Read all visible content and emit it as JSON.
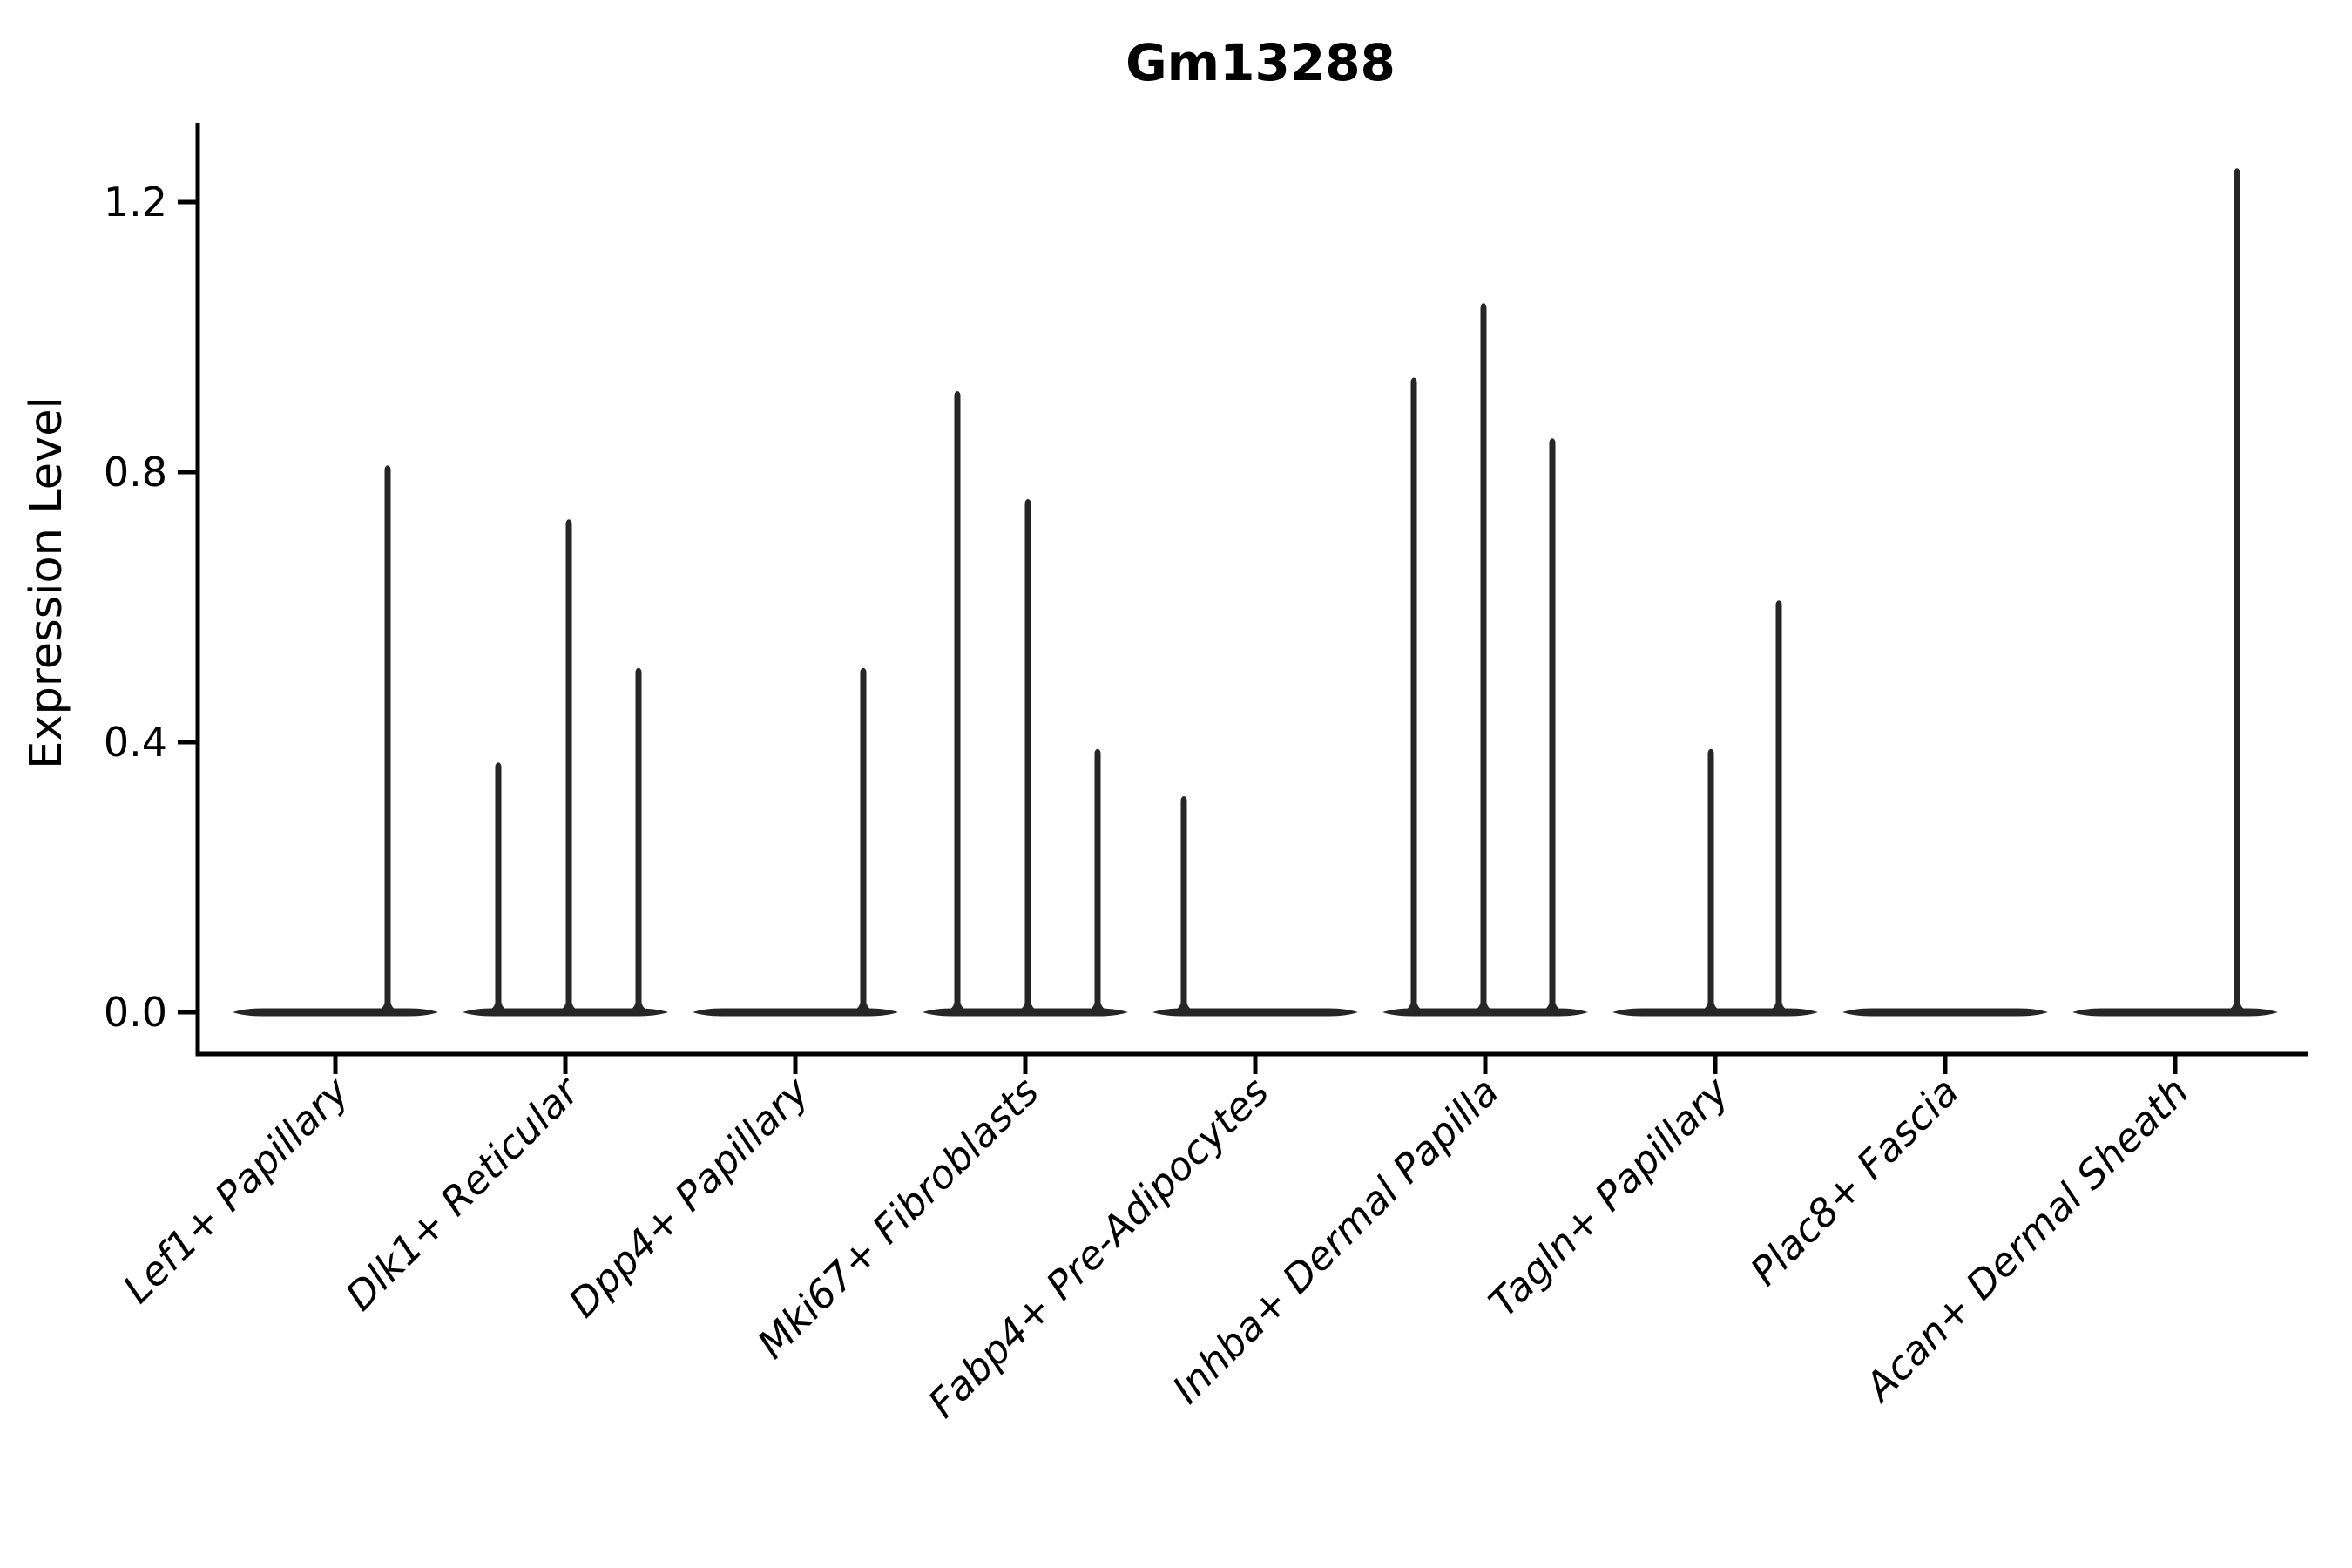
{
  "chart_data": {
    "type": "violin",
    "title": "Gm13288",
    "ylabel": "Expression Level",
    "xlabel": "",
    "categories": [
      "Lef1+ Papillary",
      "Dlk1+ Reticular",
      "Dpp4+ Papillary",
      "Mki67+ Fibroblasts",
      "Fabp4+ Pre-Adipocytes",
      "Inhba+ Dermal Papilla",
      "Tagln+ Papillary",
      "Plac8+ Fascia",
      "Acan+ Dermal Sheath"
    ],
    "y_tick_labels": [
      "0.0",
      "0.4",
      "0.8",
      "1.2"
    ],
    "y_tick_values": [
      0.0,
      0.4,
      0.8,
      1.2
    ],
    "ylim": [
      0,
      1.32
    ],
    "grid": false,
    "legend": false,
    "x_tick_rotation": 45,
    "violin_color": "#262626",
    "axis_color": "#000000",
    "series": [
      {
        "name": "Lef1+ Papillary",
        "baseline_value": 0.0,
        "spikes": [
          {
            "dx": 60,
            "value": 0.81
          }
        ]
      },
      {
        "name": "Dlk1+ Reticular",
        "baseline_value": 0.0,
        "spikes": [
          {
            "dx": -77,
            "value": 0.37
          },
          {
            "dx": 4,
            "value": 0.73
          },
          {
            "dx": 84,
            "value": 0.51
          }
        ]
      },
      {
        "name": "Dpp4+ Papillary",
        "baseline_value": 0.0,
        "spikes": [
          {
            "dx": 78,
            "value": 0.51
          }
        ]
      },
      {
        "name": "Mki67+ Fibroblasts",
        "baseline_value": 0.0,
        "spikes": [
          {
            "dx": -78,
            "value": 0.92
          },
          {
            "dx": 3,
            "value": 0.76
          },
          {
            "dx": 83,
            "value": 0.39
          }
        ]
      },
      {
        "name": "Fabp4+ Pre-Adipocytes",
        "baseline_value": 0.0,
        "spikes": [
          {
            "dx": -82,
            "value": 0.32
          }
        ]
      },
      {
        "name": "Inhba+ Dermal Papilla",
        "baseline_value": 0.0,
        "spikes": [
          {
            "dx": -82,
            "value": 0.94
          },
          {
            "dx": -2,
            "value": 1.05
          },
          {
            "dx": 77,
            "value": 0.85
          }
        ]
      },
      {
        "name": "Tagln+ Papillary",
        "baseline_value": 0.0,
        "spikes": [
          {
            "dx": -5,
            "value": 0.39
          },
          {
            "dx": 73,
            "value": 0.61
          }
        ]
      },
      {
        "name": "Plac8+ Fascia",
        "baseline_value": 0.0,
        "spikes": []
      },
      {
        "name": "Acan+ Dermal Sheath",
        "baseline_value": 0.0,
        "spikes": [
          {
            "dx": 71,
            "value": 1.25
          }
        ]
      }
    ]
  }
}
